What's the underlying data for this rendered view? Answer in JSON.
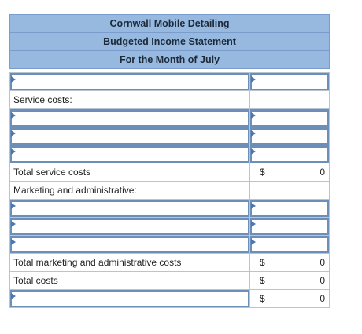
{
  "header": {
    "company": "Cornwall Mobile Detailing",
    "statement": "Budgeted Income Statement",
    "period": "For the Month of July"
  },
  "rows": {
    "service_costs_label": "Service costs:",
    "total_service_costs_label": "Total service costs",
    "total_service_costs_currency": "$",
    "total_service_costs_value": "0",
    "marketing_label": "Marketing and administrative:",
    "total_marketing_label": "Total marketing and administrative costs",
    "total_marketing_currency": "$",
    "total_marketing_value": "0",
    "total_costs_label": "Total costs",
    "total_costs_currency": "$",
    "total_costs_value": "0",
    "final_currency": "$",
    "final_value": "0"
  }
}
